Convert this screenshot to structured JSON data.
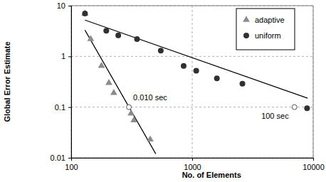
{
  "chart_data": {
    "type": "scatter",
    "x_label": "No. of Elements",
    "y_label": "Global Error Estimate",
    "log": true,
    "grid": true,
    "legend": "top-right",
    "xlim": [
      100,
      10000
    ],
    "ylim": [
      0.01,
      10
    ],
    "xticks": [
      100,
      1000,
      10000
    ],
    "yticks": [
      0.01,
      0.1,
      1,
      10
    ],
    "series": [
      {
        "name": "adaptive",
        "color": "#8c8c8c",
        "marker": "triangle",
        "x": [
          130,
          145,
          178,
          205,
          225,
          312,
          330,
          450
        ],
        "values": [
          7,
          2.2,
          0.65,
          0.3,
          0.19,
          0.075,
          0.055,
          0.023
        ],
        "trend": {
          "x": [
            130,
            500
          ],
          "values": [
            3.3,
            0.012
          ]
        }
      },
      {
        "name": "uniform",
        "color": "#303030",
        "marker": "circle",
        "x": [
          130,
          195,
          245,
          350,
          550,
          850,
          1080,
          1600,
          2600,
          8900
        ],
        "values": [
          7,
          3.2,
          2.6,
          2.2,
          1.3,
          0.65,
          0.52,
          0.37,
          0.29,
          0.095
        ],
        "trend": {
          "x": [
            130,
            9000
          ],
          "values": [
            5.2,
            0.15
          ]
        }
      }
    ],
    "annotations": [
      {
        "text": "0.010 sec",
        "x": 300,
        "y": 0.1
      },
      {
        "text": "100 sec",
        "x": 7000,
        "y": 0.1
      }
    ]
  }
}
